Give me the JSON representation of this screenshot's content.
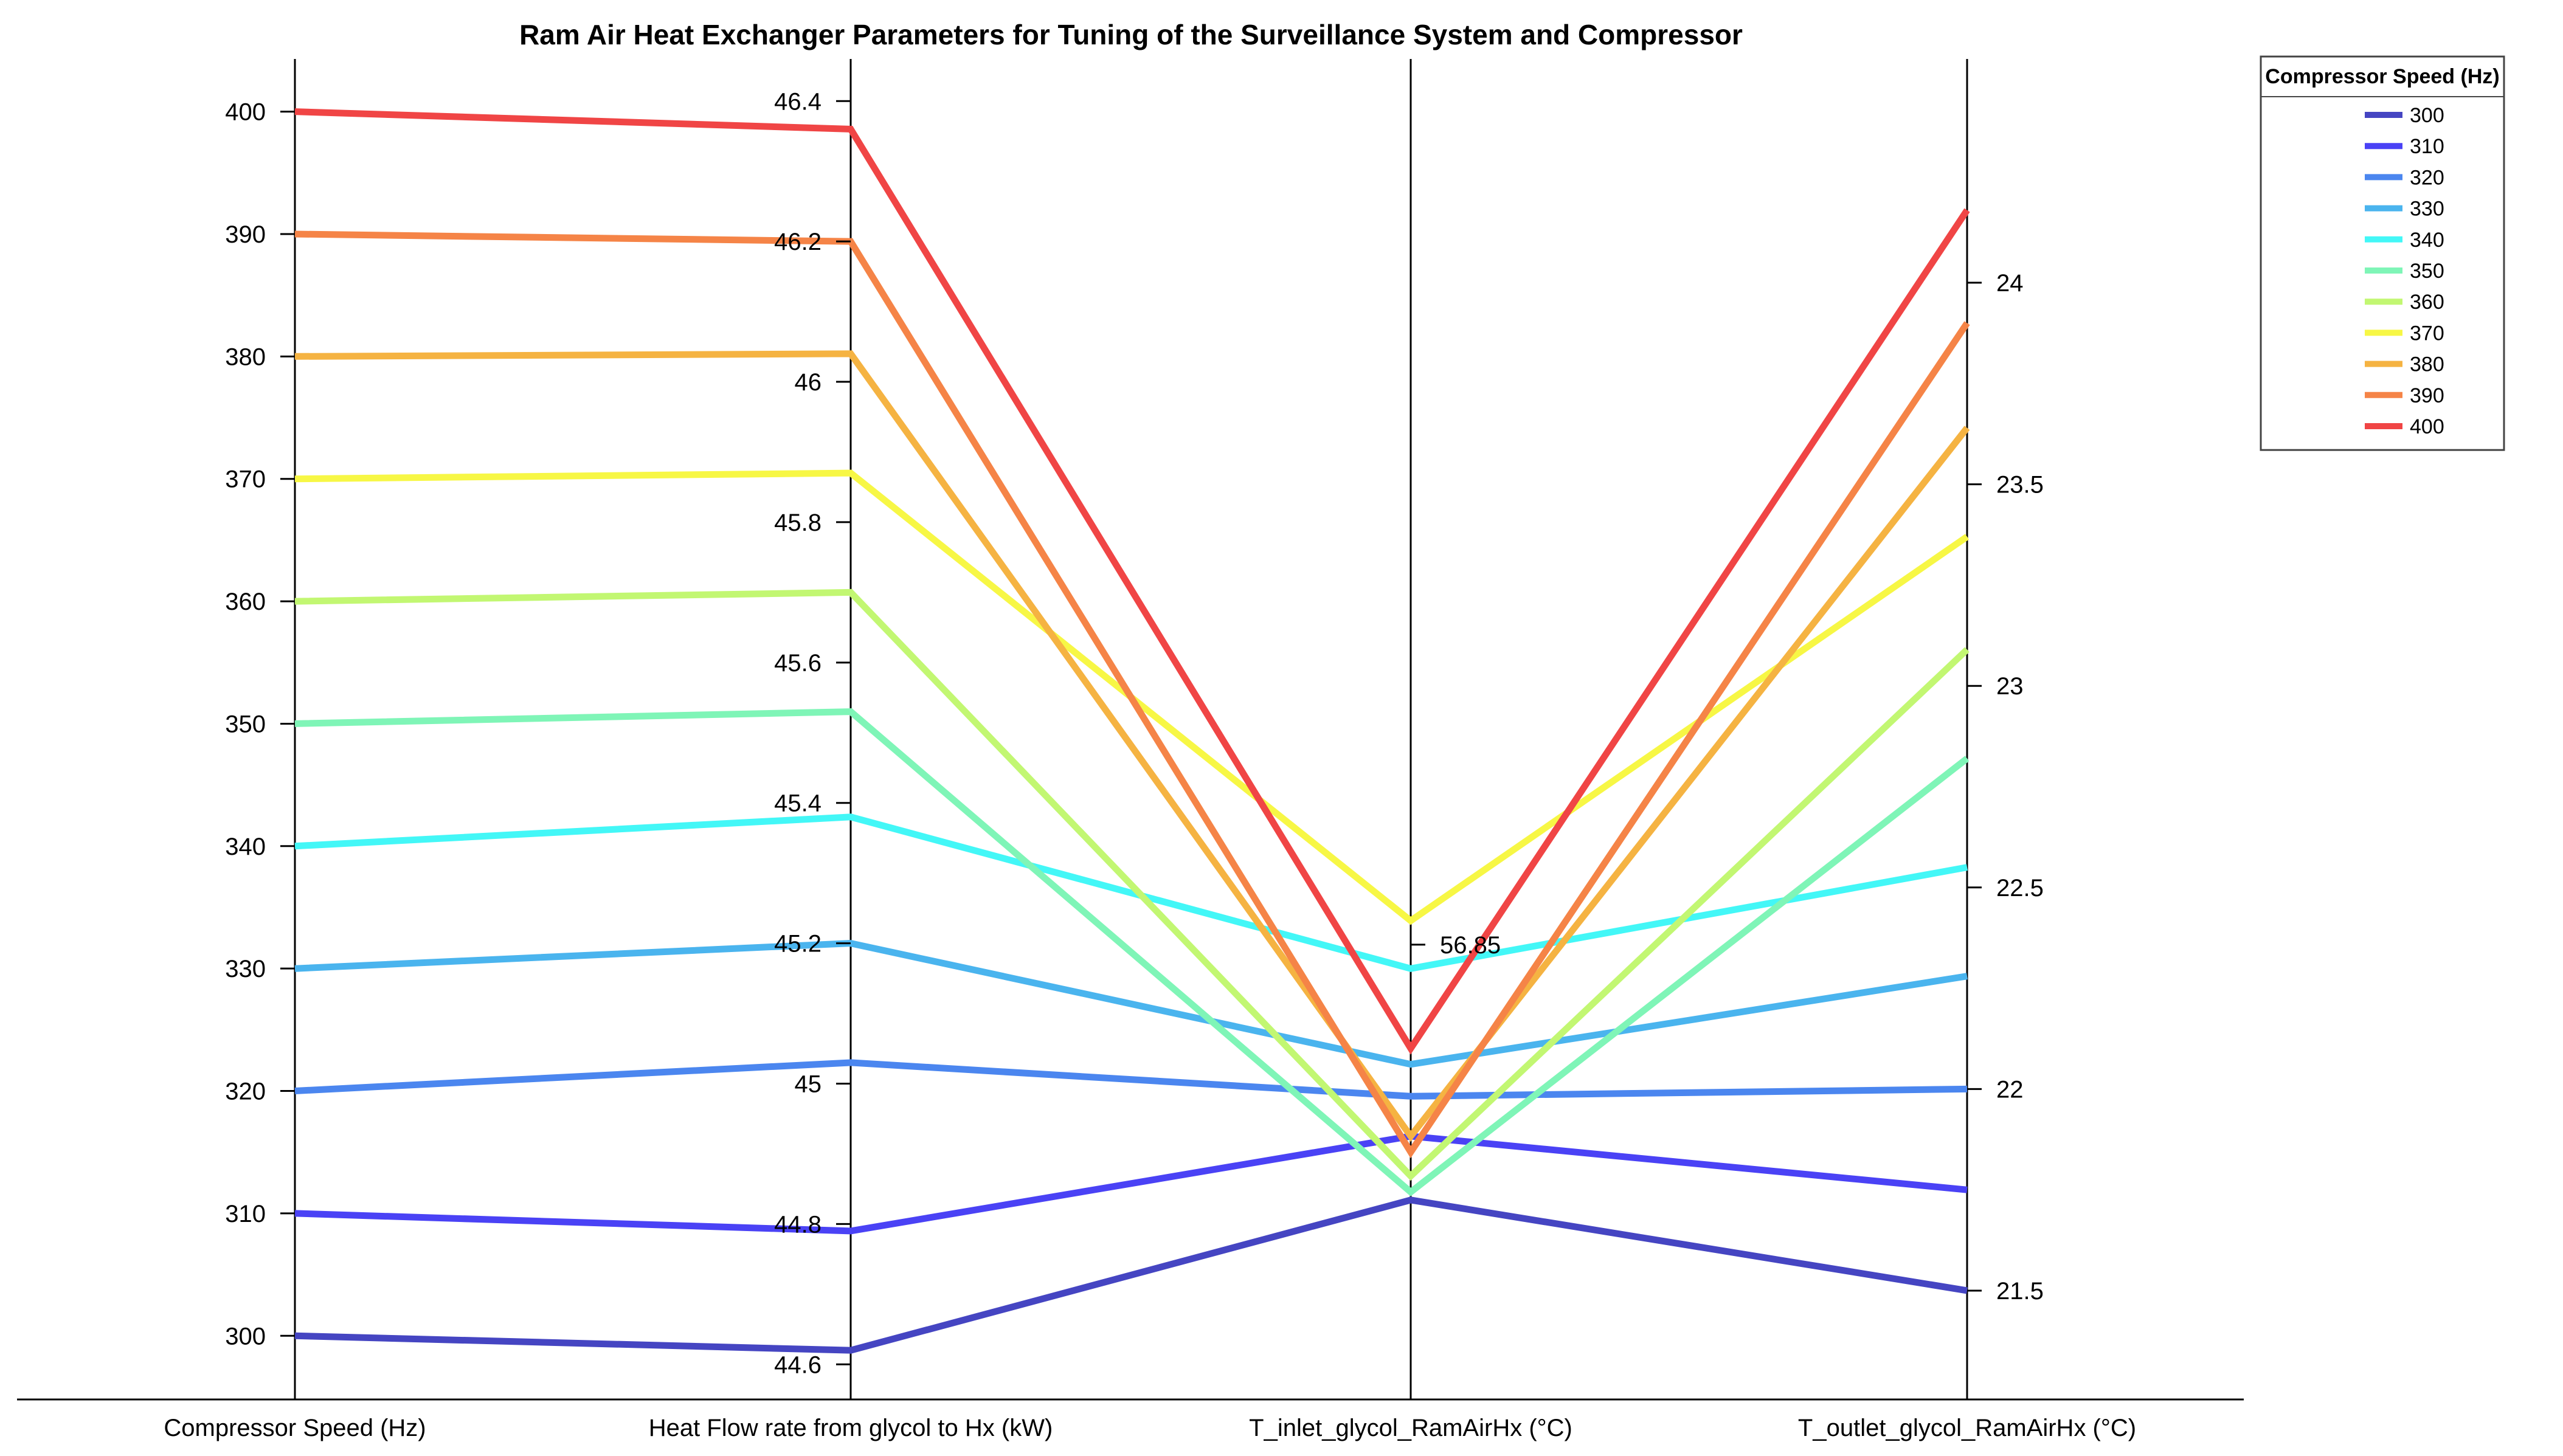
{
  "chart_data": {
    "type": "parallel-coordinates",
    "title": "Ram Air Heat Exchanger Parameters for Tuning of the Surveillance System and Compressor",
    "axes": [
      {
        "label": "Compressor Speed (Hz)",
        "range": [
          294.8,
          404.3
        ],
        "ticks": [
          300,
          310,
          320,
          330,
          340,
          350,
          360,
          370,
          380,
          390,
          400
        ],
        "tick_labels": [
          "300",
          "310",
          "320",
          "330",
          "340",
          "350",
          "360",
          "370",
          "380",
          "390",
          "400"
        ],
        "tick_side": "left"
      },
      {
        "label": "Heat Flow rate from glycol to Hx (kW)",
        "range": [
          44.55,
          46.46
        ],
        "ticks": [
          44.6,
          44.8,
          45,
          45.2,
          45.4,
          45.6,
          45.8,
          46,
          46.2,
          46.4
        ],
        "tick_labels": [
          "44.6",
          "44.8",
          "45",
          "45.2",
          "45.4",
          "45.6",
          "45.8",
          "46",
          "46.2",
          "46.4"
        ],
        "tick_side": "left"
      },
      {
        "label": "T_inlet_glycol_RamAirHx (°C)",
        "range": [
          56.28,
          57.96
        ],
        "ticks": [
          56.85
        ],
        "tick_labels": [
          "56.85"
        ],
        "tick_side": "right"
      },
      {
        "label": "T_outlet_glycol_RamAirHx (°C)",
        "range": [
          21.23,
          24.555
        ],
        "ticks": [
          21.5,
          22,
          22.5,
          23,
          23.5,
          24
        ],
        "tick_labels": [
          "21.5",
          "22",
          "22.5",
          "23",
          "23.5",
          "24"
        ],
        "tick_side": "right"
      }
    ],
    "legend": {
      "title": "Compressor Speed (Hz)",
      "position": "top-right"
    },
    "series": [
      {
        "name": "300",
        "color": "#4545c2",
        "values": [
          300,
          44.62,
          56.53,
          21.5
        ]
      },
      {
        "name": "310",
        "color": "#4a42f5",
        "values": [
          310,
          44.79,
          56.61,
          21.75
        ]
      },
      {
        "name": "320",
        "color": "#4b86ef",
        "values": [
          320,
          45.03,
          56.66,
          22.0
        ]
      },
      {
        "name": "330",
        "color": "#4ab4ee",
        "values": [
          330,
          45.2,
          56.7,
          22.28
        ]
      },
      {
        "name": "340",
        "color": "#43f7f7",
        "values": [
          340,
          45.38,
          56.82,
          22.55
        ]
      },
      {
        "name": "350",
        "color": "#7ff5b7",
        "values": [
          350,
          45.53,
          56.54,
          22.82
        ]
      },
      {
        "name": "360",
        "color": "#c2f772",
        "values": [
          360,
          45.7,
          56.56,
          23.09
        ]
      },
      {
        "name": "370",
        "color": "#f7f745",
        "values": [
          370,
          45.87,
          56.88,
          23.37
        ]
      },
      {
        "name": "380",
        "color": "#f5b342",
        "values": [
          380,
          46.04,
          56.61,
          23.64
        ]
      },
      {
        "name": "390",
        "color": "#f58447",
        "values": [
          390,
          46.2,
          56.59,
          23.9
        ]
      },
      {
        "name": "400",
        "color": "#f04545",
        "values": [
          400,
          46.36,
          56.72,
          24.18
        ]
      }
    ]
  }
}
